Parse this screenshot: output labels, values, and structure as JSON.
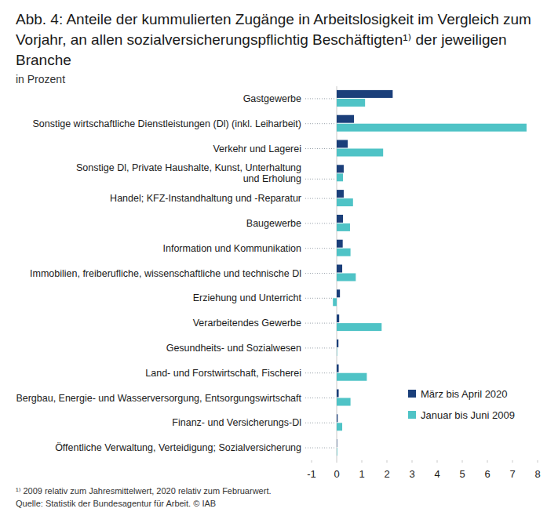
{
  "chart_data": {
    "type": "bar",
    "orientation": "horizontal",
    "title": "Abb. 4:  Anteile der kummulierten Zugänge in Arbeitslosigkeit im Vergleich zum Vorjahr, an allen sozialversicherungspflichtig Beschäftigten¹⁾ der jeweiligen Branche",
    "subtitle": "in Prozent",
    "annotations": [
      "¹⁾ 2009 relativ zum Jahresmittelwert, 2020 relativ zum Februarwert.",
      "Quelle: Statistik der Bundesagentur für Arbeit. © IAB"
    ],
    "categories": [
      "Gastgewerbe",
      "Sonstige wirtschaftliche Dienstleistungen (Dl) (inkl. Leiharbeit)",
      "Verkehr und Lagerei",
      "Sonstige Dl, Private Haushalte, Kunst, Unterhaltung\nund Erholung",
      "Handel; KFZ-Instandhaltung und -Reparatur",
      "Baugewerbe",
      "Information und Kommunikation",
      "Immobilien, freiberufliche, wissenschaftliche und technische Dl",
      "Erziehung und Unterricht",
      "Verarbeitendes Gewerbe",
      "Gesundheits- und Sozialwesen",
      "Land- und Forstwirtschaft, Fischerei",
      "Bergbau, Energie- und Wasserversorgung, Entsorgungswirtschaft",
      "Finanz- und Versicherungs-Dl",
      "Öffentliche Verwaltung, Verteidigung; Sozialversicherung"
    ],
    "series": [
      {
        "name": "März bis April 2020",
        "color": "#1b3f7a",
        "values": [
          2.23,
          0.69,
          0.44,
          0.28,
          0.28,
          0.25,
          0.24,
          0.22,
          0.13,
          0.1,
          0.07,
          0.08,
          0.08,
          0.04,
          0.01
        ]
      },
      {
        "name": "Januar bis Juni 2009",
        "color": "#4fc3c6",
        "values": [
          1.13,
          7.56,
          1.85,
          0.25,
          0.65,
          0.53,
          0.55,
          0.76,
          -0.15,
          1.79,
          0.01,
          1.2,
          0.55,
          0.22,
          0.02
        ]
      }
    ],
    "xlim": [
      -1,
      8
    ],
    "xticks": [
      -1,
      0,
      1,
      2,
      3,
      4,
      5,
      6,
      7,
      8
    ],
    "grid": false,
    "legend": "lower right"
  }
}
